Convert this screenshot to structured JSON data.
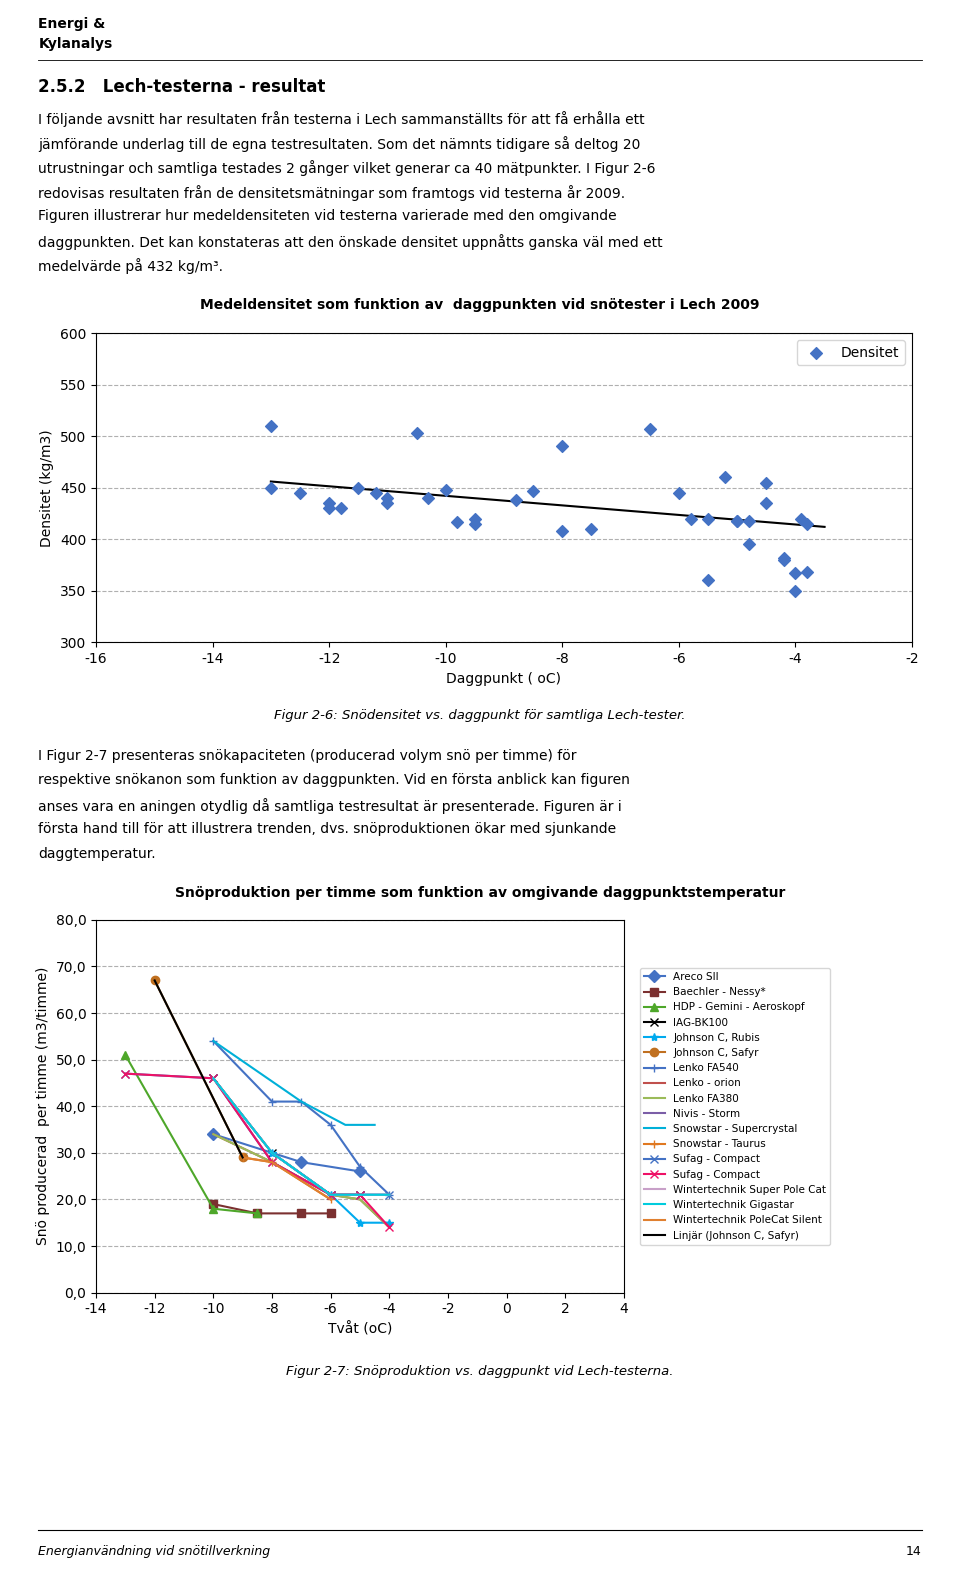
{
  "header": [
    "Energi &",
    "Kylanalys"
  ],
  "title": "2.5.2   Lech-testerna - resultat",
  "paragraphs": [
    [
      "I följande avsnitt har resultaten från testerna i Lech sammanställts för att få erhålla ett",
      "jämförande underlag till de egna testresultaten. Som det nämnts tidigare så deltog 20",
      "utrustningar och samtliga testades 2 gånger vilket generar ca 40 mätpunkter. I Figur 2-6",
      "redovisas resultaten från de densitetsmätningar som framtogs vid testerna år 2009.",
      "Figuren illustrerar hur medeldensiteten vid testerna varierade med den omgivande",
      "daggpunkten. Det kan konstateras att den önskade densitet uppnåtts ganska väl med ett",
      "medelvärde på 432 kg/m³."
    ],
    [
      "I Figur 2-7 presenteras snökapaciteten (producerad volym snö per timme) för",
      "respektive snökanon som funktion av daggpunkten. Vid en första anblick kan figuren",
      "anses vara en aningen otydlig då samtliga testresultat är presenterade. Figuren är i",
      "första hand till för att illustrera trenden, dvs. snöproduktionen ökar med sjunkande",
      "daggtemperatur."
    ]
  ],
  "footer": [
    "Energianvändning vid snötillverkning",
    "14"
  ],
  "chart_data": [
    {
      "type": "scatter",
      "title": "Medeldensitet som funktion av  daggpunkten vid snötester i Lech 2009",
      "caption": "Figur 2-6: Snödensitet vs. daggpunkt för samtliga Lech-tester.",
      "xlabel": "Daggpunkt ( oC)",
      "ylabel": "Densitet (kg/m3)",
      "xlim": [
        -16,
        -2
      ],
      "ylim": [
        300,
        600
      ],
      "xticks": [
        -16,
        -14,
        -12,
        -10,
        -8,
        -6,
        -4,
        -2
      ],
      "yticks": [
        300,
        350,
        400,
        450,
        500,
        550,
        600
      ],
      "grid": true,
      "legend": "upper right",
      "series": [
        {
          "name": "Densitet",
          "type": "scatter",
          "color": "#4472C4",
          "marker": "D",
          "x": [
            -13,
            -13,
            -12.5,
            -12,
            -12,
            -11.8,
            -11.5,
            -11.2,
            -11,
            -11,
            -10.5,
            -10.3,
            -10,
            -9.8,
            -9.5,
            -9.5,
            -8.8,
            -8.5,
            -8,
            -8,
            -7.5,
            -6.5,
            -6,
            -5.8,
            -5.5,
            -5.5,
            -5.2,
            -5,
            -5,
            -4.8,
            -4.8,
            -4.5,
            -4.5,
            -4.2,
            -4.2,
            -4,
            -4,
            -3.9,
            -3.8,
            -3.8
          ],
          "values": [
            510,
            450,
            445,
            435,
            430,
            430,
            450,
            445,
            440,
            435,
            503,
            440,
            448,
            417,
            420,
            415,
            438,
            447,
            490,
            408,
            410,
            507,
            445,
            420,
            420,
            360,
            460,
            418,
            418,
            395,
            418,
            455,
            435,
            382,
            380,
            350,
            367,
            420,
            368,
            415
          ]
        },
        {
          "type": "line",
          "color": "#000000",
          "x": [
            -13,
            -3.5
          ],
          "values": [
            456,
            412
          ]
        }
      ]
    },
    {
      "type": "line",
      "title": "Snöproduktion per timme som funktion av omgivande daggpunktstemperatur",
      "caption": "Figur 2-7: Snöproduktion vs. daggpunkt vid Lech-testerna.",
      "xlabel": "Tvåt (oC)",
      "ylabel": "Snö producerad  per timme (m3/timme)",
      "xlim": [
        -14,
        4
      ],
      "ylim": [
        0,
        80
      ],
      "xticks": [
        -14,
        -12,
        -10,
        -8,
        -6,
        -4,
        -2,
        0,
        2,
        4
      ],
      "yticks": [
        {
          "value": 0,
          "label": "0,0"
        },
        {
          "value": 10,
          "label": "10,0"
        },
        {
          "value": 20,
          "label": "20,0"
        },
        {
          "value": 30,
          "label": "30,0"
        },
        {
          "value": 40,
          "label": "40,0"
        },
        {
          "value": 50,
          "label": "50,0"
        },
        {
          "value": 60,
          "label": "60,0"
        },
        {
          "value": 70,
          "label": "70,0"
        },
        {
          "value": 80,
          "label": "80,0"
        }
      ],
      "grid": true,
      "legend": "right",
      "series": [
        {
          "name": "Areco SII",
          "color": "#4472C4",
          "marker": "D",
          "x": [
            -10,
            -7,
            -5
          ],
          "values": [
            34,
            28,
            26
          ]
        },
        {
          "name": "Baechler - Nessy*",
          "color": "#7B3030",
          "marker": "s",
          "x": [
            -10,
            -8.5,
            -7,
            -6
          ],
          "values": [
            19,
            17,
            17,
            17
          ]
        },
        {
          "name": "HDP - Gemini - Aeroskopf",
          "color": "#4EA72A",
          "marker": "^",
          "x": [
            -13,
            -10,
            -8.5
          ],
          "values": [
            51,
            18,
            17
          ]
        },
        {
          "name": "IAG-BK100",
          "color": "#000000",
          "marker": "x",
          "x": [
            -10,
            -8,
            -6,
            -5
          ],
          "values": [
            46,
            30,
            21,
            21
          ]
        },
        {
          "name": "Johnson C, Rubis",
          "color": "#00AAEE",
          "marker": "*",
          "x": [
            -8,
            -6,
            -5,
            -4
          ],
          "values": [
            30,
            21,
            15,
            15
          ]
        },
        {
          "name": "Johnson C, Safyr",
          "color": "#C07020",
          "marker": "o",
          "x": [
            -12,
            -9
          ],
          "values": [
            67,
            29
          ]
        },
        {
          "name": "Lenko FA540",
          "color": "#4472C4",
          "marker": "+",
          "x": [
            -10,
            -8,
            -7,
            -6,
            -5,
            -4
          ],
          "values": [
            54,
            41,
            41,
            36,
            27,
            21
          ]
        },
        {
          "name": "Lenko - orion",
          "color": "#C0504D",
          "x": [
            -10,
            -8,
            -6,
            -5,
            -4
          ],
          "values": [
            34,
            28,
            21,
            20,
            14
          ]
        },
        {
          "name": "Lenko FA380",
          "color": "#9BBB59",
          "x": [
            -10,
            -8,
            -6,
            -5,
            -4
          ],
          "values": [
            34,
            28,
            21,
            20,
            14
          ]
        },
        {
          "name": "Nivis - Storm",
          "color": "#7B5EA7",
          "x": [
            -10,
            -8,
            -6,
            -5,
            -4
          ],
          "values": [
            46,
            30,
            21,
            21,
            21
          ]
        },
        {
          "name": "Snowstar - Supercrystal",
          "color": "#00B0D8",
          "x": [
            -10,
            -7,
            -5.5,
            -4.5
          ],
          "values": [
            54,
            41,
            36,
            36
          ]
        },
        {
          "name": "Snowstar - Taurus",
          "color": "#E07820",
          "marker": "+",
          "x": [
            -9,
            -8,
            -6
          ],
          "values": [
            29,
            28,
            20
          ]
        },
        {
          "name": "Sufag - Compact",
          "color": "#4472C4",
          "marker": "x",
          "x": [
            -13,
            -10,
            -8,
            -6,
            -5,
            -4
          ],
          "values": [
            47,
            46,
            28,
            21,
            21,
            21
          ]
        },
        {
          "name": "Sufag - Compact",
          "color": "#EE1166",
          "marker": "x",
          "x": [
            -13,
            -10,
            -8,
            -6,
            -5,
            -4
          ],
          "values": [
            47,
            46,
            28,
            21,
            21,
            14
          ]
        },
        {
          "name": "Wintertechnik Super Pole Cat",
          "color": "#C8A0C8",
          "x": [
            -10,
            -8,
            -6,
            -5,
            -4
          ],
          "values": [
            46,
            30,
            21,
            21,
            21
          ]
        },
        {
          "name": "Wintertechnik Gigastar",
          "color": "#00CCDD",
          "x": [
            -10,
            -8,
            -6,
            -5,
            -4
          ],
          "values": [
            46,
            30,
            21,
            21,
            21
          ]
        },
        {
          "name": "Wintertechnik PoleCat Silent",
          "color": "#E08030",
          "x": [
            -9,
            -8,
            -6
          ],
          "values": [
            29,
            28,
            20
          ]
        },
        {
          "name": "Linjär (Johnson C, Safyr)",
          "color": "#000000",
          "x": [
            -12,
            -9
          ],
          "values": [
            67,
            29
          ]
        }
      ]
    }
  ]
}
